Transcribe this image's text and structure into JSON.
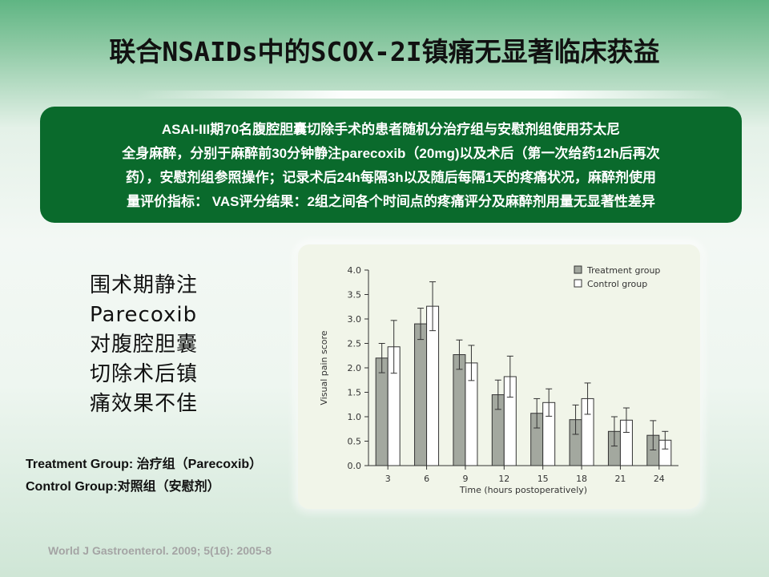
{
  "slide": {
    "title": "联合NSAIDs中的SCOX-2I镇痛无显著临床获益",
    "summary_lines": [
      "ASAI-III期70名腹腔胆囊切除手术的患者随机分治疗组与安慰剂组使用芬太尼",
      "全身麻醉，分别于麻醉前30分钟静注parecoxib（20mg)以及术后（第一次给药12h后再次",
      "药），安慰剂组参照操作；记录术后24h每隔3h以及随后每隔1天的疼痛状况，麻醉剂使用",
      "量评价指标： VAS评分结果：2组之间各个时间点的疼痛评分及麻醉剂用量无显著性差异"
    ],
    "left_note_lines": [
      "围术期静注",
      "Parecoxib",
      "对腹腔胆囊",
      "切除术后镇",
      "痛效果不佳"
    ],
    "legend_note_lines": [
      "Treatment Group: 治疗组（Parecoxib）",
      "Control Group:对照组（安慰剂）"
    ],
    "citation": "World J Gastroenterol. 2009; 5(16): 2005-8"
  },
  "colors": {
    "summary_bg": "#0a6a2c",
    "treatment_bar": "#a3a89f",
    "control_bar": "#ffffff",
    "bar_stroke": "#333333"
  },
  "chart_data": {
    "type": "bar",
    "title": "",
    "xlabel": "Time (hours postoperatively)",
    "ylabel": "Visual pain score",
    "ylim": [
      0,
      4.0
    ],
    "yticks": [
      "0.0",
      "0.5",
      "1.0",
      "1.5",
      "2.0",
      "2.5",
      "3.0",
      "3.5",
      "4.0"
    ],
    "categories": [
      "3",
      "6",
      "9",
      "12",
      "15",
      "18",
      "21",
      "24"
    ],
    "legend_position": "top-right",
    "grid": false,
    "series": [
      {
        "name": "Treatment group",
        "values": [
          2.2,
          2.9,
          2.27,
          1.45,
          1.07,
          0.94,
          0.7,
          0.62
        ],
        "error": [
          0.3,
          0.32,
          0.3,
          0.3,
          0.3,
          0.3,
          0.3,
          0.3
        ]
      },
      {
        "name": "Control group",
        "values": [
          2.43,
          3.26,
          2.1,
          1.82,
          1.29,
          1.37,
          0.93,
          0.52
        ],
        "error": [
          0.54,
          0.5,
          0.36,
          0.42,
          0.28,
          0.32,
          0.25,
          0.18
        ]
      }
    ]
  }
}
